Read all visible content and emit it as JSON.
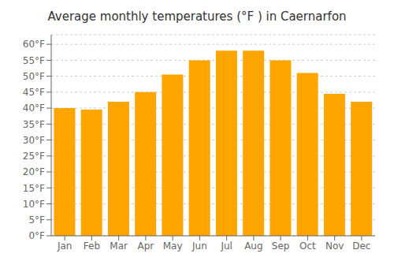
{
  "chart_data": {
    "type": "bar",
    "title": "Average monthly temperatures (°F ) in Caernarfon",
    "categories": [
      "Jan",
      "Feb",
      "Mar",
      "Apr",
      "May",
      "Jun",
      "Jul",
      "Aug",
      "Sep",
      "Oct",
      "Nov",
      "Dec"
    ],
    "values": [
      40,
      39.5,
      42,
      45,
      50.5,
      55,
      58,
      58,
      55,
      51,
      44.5,
      42
    ],
    "color": "#FFA500",
    "ylim": [
      0,
      63
    ],
    "yticks": [
      {
        "value": 0,
        "label": "0°F"
      },
      {
        "value": 5,
        "label": "5°F"
      },
      {
        "value": 10,
        "label": "10°F"
      },
      {
        "value": 15,
        "label": "15°F"
      },
      {
        "value": 20,
        "label": "20°F"
      },
      {
        "value": 25,
        "label": "25°F"
      },
      {
        "value": 30,
        "label": "30°F"
      },
      {
        "value": 35,
        "label": "35°F"
      },
      {
        "value": 40,
        "label": "40°F"
      },
      {
        "value": 45,
        "label": "45°F"
      },
      {
        "value": 50,
        "label": "50°F"
      },
      {
        "value": 55,
        "label": "55°F"
      },
      {
        "value": 60,
        "label": "60°F"
      }
    ],
    "grid": true
  }
}
